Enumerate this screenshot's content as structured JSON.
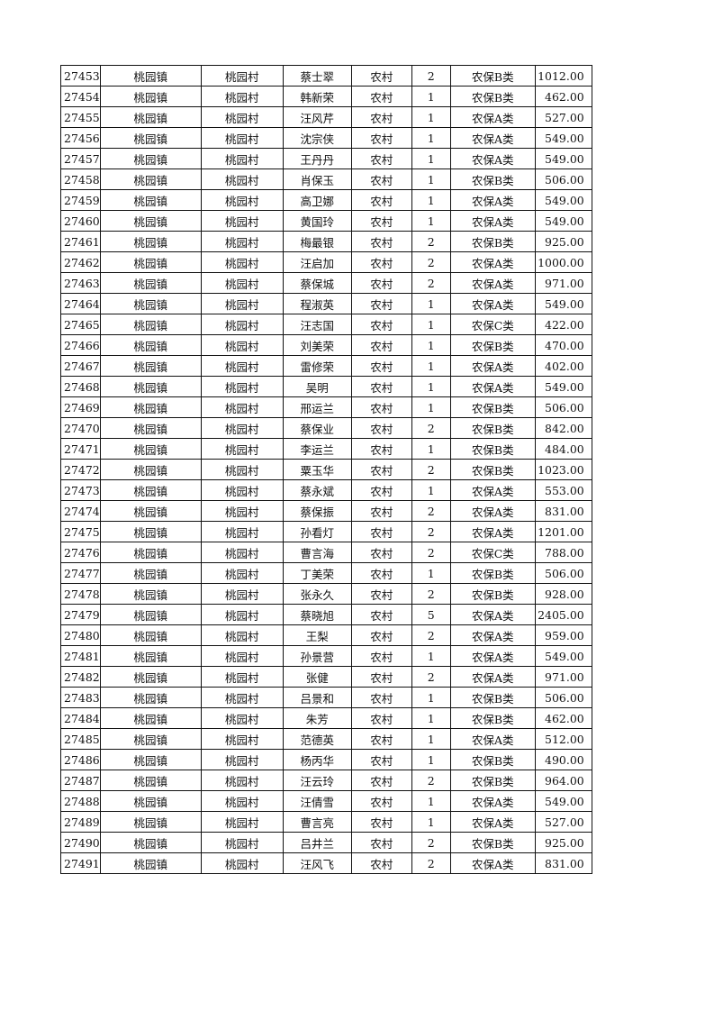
{
  "rows": [
    [
      "27453",
      "桃园镇",
      "桃园村",
      "蔡士翠",
      "农村",
      "2",
      "农保B类",
      "1012.00"
    ],
    [
      "27454",
      "桃园镇",
      "桃园村",
      "韩新荣",
      "农村",
      "1",
      "农保B类",
      "462.00"
    ],
    [
      "27455",
      "桃园镇",
      "桃园村",
      "汪风芹",
      "农村",
      "1",
      "农保A类",
      "527.00"
    ],
    [
      "27456",
      "桃园镇",
      "桃园村",
      "沈宗侠",
      "农村",
      "1",
      "农保A类",
      "549.00"
    ],
    [
      "27457",
      "桃园镇",
      "桃园村",
      "王丹丹",
      "农村",
      "1",
      "农保A类",
      "549.00"
    ],
    [
      "27458",
      "桃园镇",
      "桃园村",
      "肖保玉",
      "农村",
      "1",
      "农保B类",
      "506.00"
    ],
    [
      "27459",
      "桃园镇",
      "桃园村",
      "高卫娜",
      "农村",
      "1",
      "农保A类",
      "549.00"
    ],
    [
      "27460",
      "桃园镇",
      "桃园村",
      "黄国玲",
      "农村",
      "1",
      "农保A类",
      "549.00"
    ],
    [
      "27461",
      "桃园镇",
      "桃园村",
      "梅最银",
      "农村",
      "2",
      "农保B类",
      "925.00"
    ],
    [
      "27462",
      "桃园镇",
      "桃园村",
      "汪启加",
      "农村",
      "2",
      "农保A类",
      "1000.00"
    ],
    [
      "27463",
      "桃园镇",
      "桃园村",
      "蔡保城",
      "农村",
      "2",
      "农保A类",
      "971.00"
    ],
    [
      "27464",
      "桃园镇",
      "桃园村",
      "程淑英",
      "农村",
      "1",
      "农保A类",
      "549.00"
    ],
    [
      "27465",
      "桃园镇",
      "桃园村",
      "汪志国",
      "农村",
      "1",
      "农保C类",
      "422.00"
    ],
    [
      "27466",
      "桃园镇",
      "桃园村",
      "刘美荣",
      "农村",
      "1",
      "农保B类",
      "470.00"
    ],
    [
      "27467",
      "桃园镇",
      "桃园村",
      "雷修荣",
      "农村",
      "1",
      "农保A类",
      "402.00"
    ],
    [
      "27468",
      "桃园镇",
      "桃园村",
      "吴明",
      "农村",
      "1",
      "农保A类",
      "549.00"
    ],
    [
      "27469",
      "桃园镇",
      "桃园村",
      "邢运兰",
      "农村",
      "1",
      "农保B类",
      "506.00"
    ],
    [
      "27470",
      "桃园镇",
      "桃园村",
      "蔡保业",
      "农村",
      "2",
      "农保B类",
      "842.00"
    ],
    [
      "27471",
      "桃园镇",
      "桃园村",
      "李运兰",
      "农村",
      "1",
      "农保B类",
      "484.00"
    ],
    [
      "27472",
      "桃园镇",
      "桃园村",
      "粟玉华",
      "农村",
      "2",
      "农保B类",
      "1023.00"
    ],
    [
      "27473",
      "桃园镇",
      "桃园村",
      "蔡永斌",
      "农村",
      "1",
      "农保A类",
      "553.00"
    ],
    [
      "27474",
      "桃园镇",
      "桃园村",
      "蔡保振",
      "农村",
      "2",
      "农保A类",
      "831.00"
    ],
    [
      "27475",
      "桃园镇",
      "桃园村",
      "孙看灯",
      "农村",
      "2",
      "农保A类",
      "1201.00"
    ],
    [
      "27476",
      "桃园镇",
      "桃园村",
      "曹言海",
      "农村",
      "2",
      "农保C类",
      "788.00"
    ],
    [
      "27477",
      "桃园镇",
      "桃园村",
      "丁美荣",
      "农村",
      "1",
      "农保B类",
      "506.00"
    ],
    [
      "27478",
      "桃园镇",
      "桃园村",
      "张永久",
      "农村",
      "2",
      "农保B类",
      "928.00"
    ],
    [
      "27479",
      "桃园镇",
      "桃园村",
      "蔡晓旭",
      "农村",
      "5",
      "农保A类",
      "2405.00"
    ],
    [
      "27480",
      "桃园镇",
      "桃园村",
      "王梨",
      "农村",
      "2",
      "农保A类",
      "959.00"
    ],
    [
      "27481",
      "桃园镇",
      "桃园村",
      "孙景营",
      "农村",
      "1",
      "农保A类",
      "549.00"
    ],
    [
      "27482",
      "桃园镇",
      "桃园村",
      "张健",
      "农村",
      "2",
      "农保A类",
      "971.00"
    ],
    [
      "27483",
      "桃园镇",
      "桃园村",
      "吕景和",
      "农村",
      "1",
      "农保B类",
      "506.00"
    ],
    [
      "27484",
      "桃园镇",
      "桃园村",
      "朱芳",
      "农村",
      "1",
      "农保B类",
      "462.00"
    ],
    [
      "27485",
      "桃园镇",
      "桃园村",
      "范德英",
      "农村",
      "1",
      "农保A类",
      "512.00"
    ],
    [
      "27486",
      "桃园镇",
      "桃园村",
      "杨丙华",
      "农村",
      "1",
      "农保B类",
      "490.00"
    ],
    [
      "27487",
      "桃园镇",
      "桃园村",
      "汪云玲",
      "农村",
      "2",
      "农保B类",
      "964.00"
    ],
    [
      "27488",
      "桃园镇",
      "桃园村",
      "汪倩雪",
      "农村",
      "1",
      "农保A类",
      "549.00"
    ],
    [
      "27489",
      "桃园镇",
      "桃园村",
      "曹言亮",
      "农村",
      "1",
      "农保A类",
      "527.00"
    ],
    [
      "27490",
      "桃园镇",
      "桃园村",
      "吕井兰",
      "农村",
      "2",
      "农保B类",
      "925.00"
    ],
    [
      "27491",
      "桃园镇",
      "桃园村",
      "汪风飞",
      "农村",
      "2",
      "农保A类",
      "831.00"
    ]
  ]
}
